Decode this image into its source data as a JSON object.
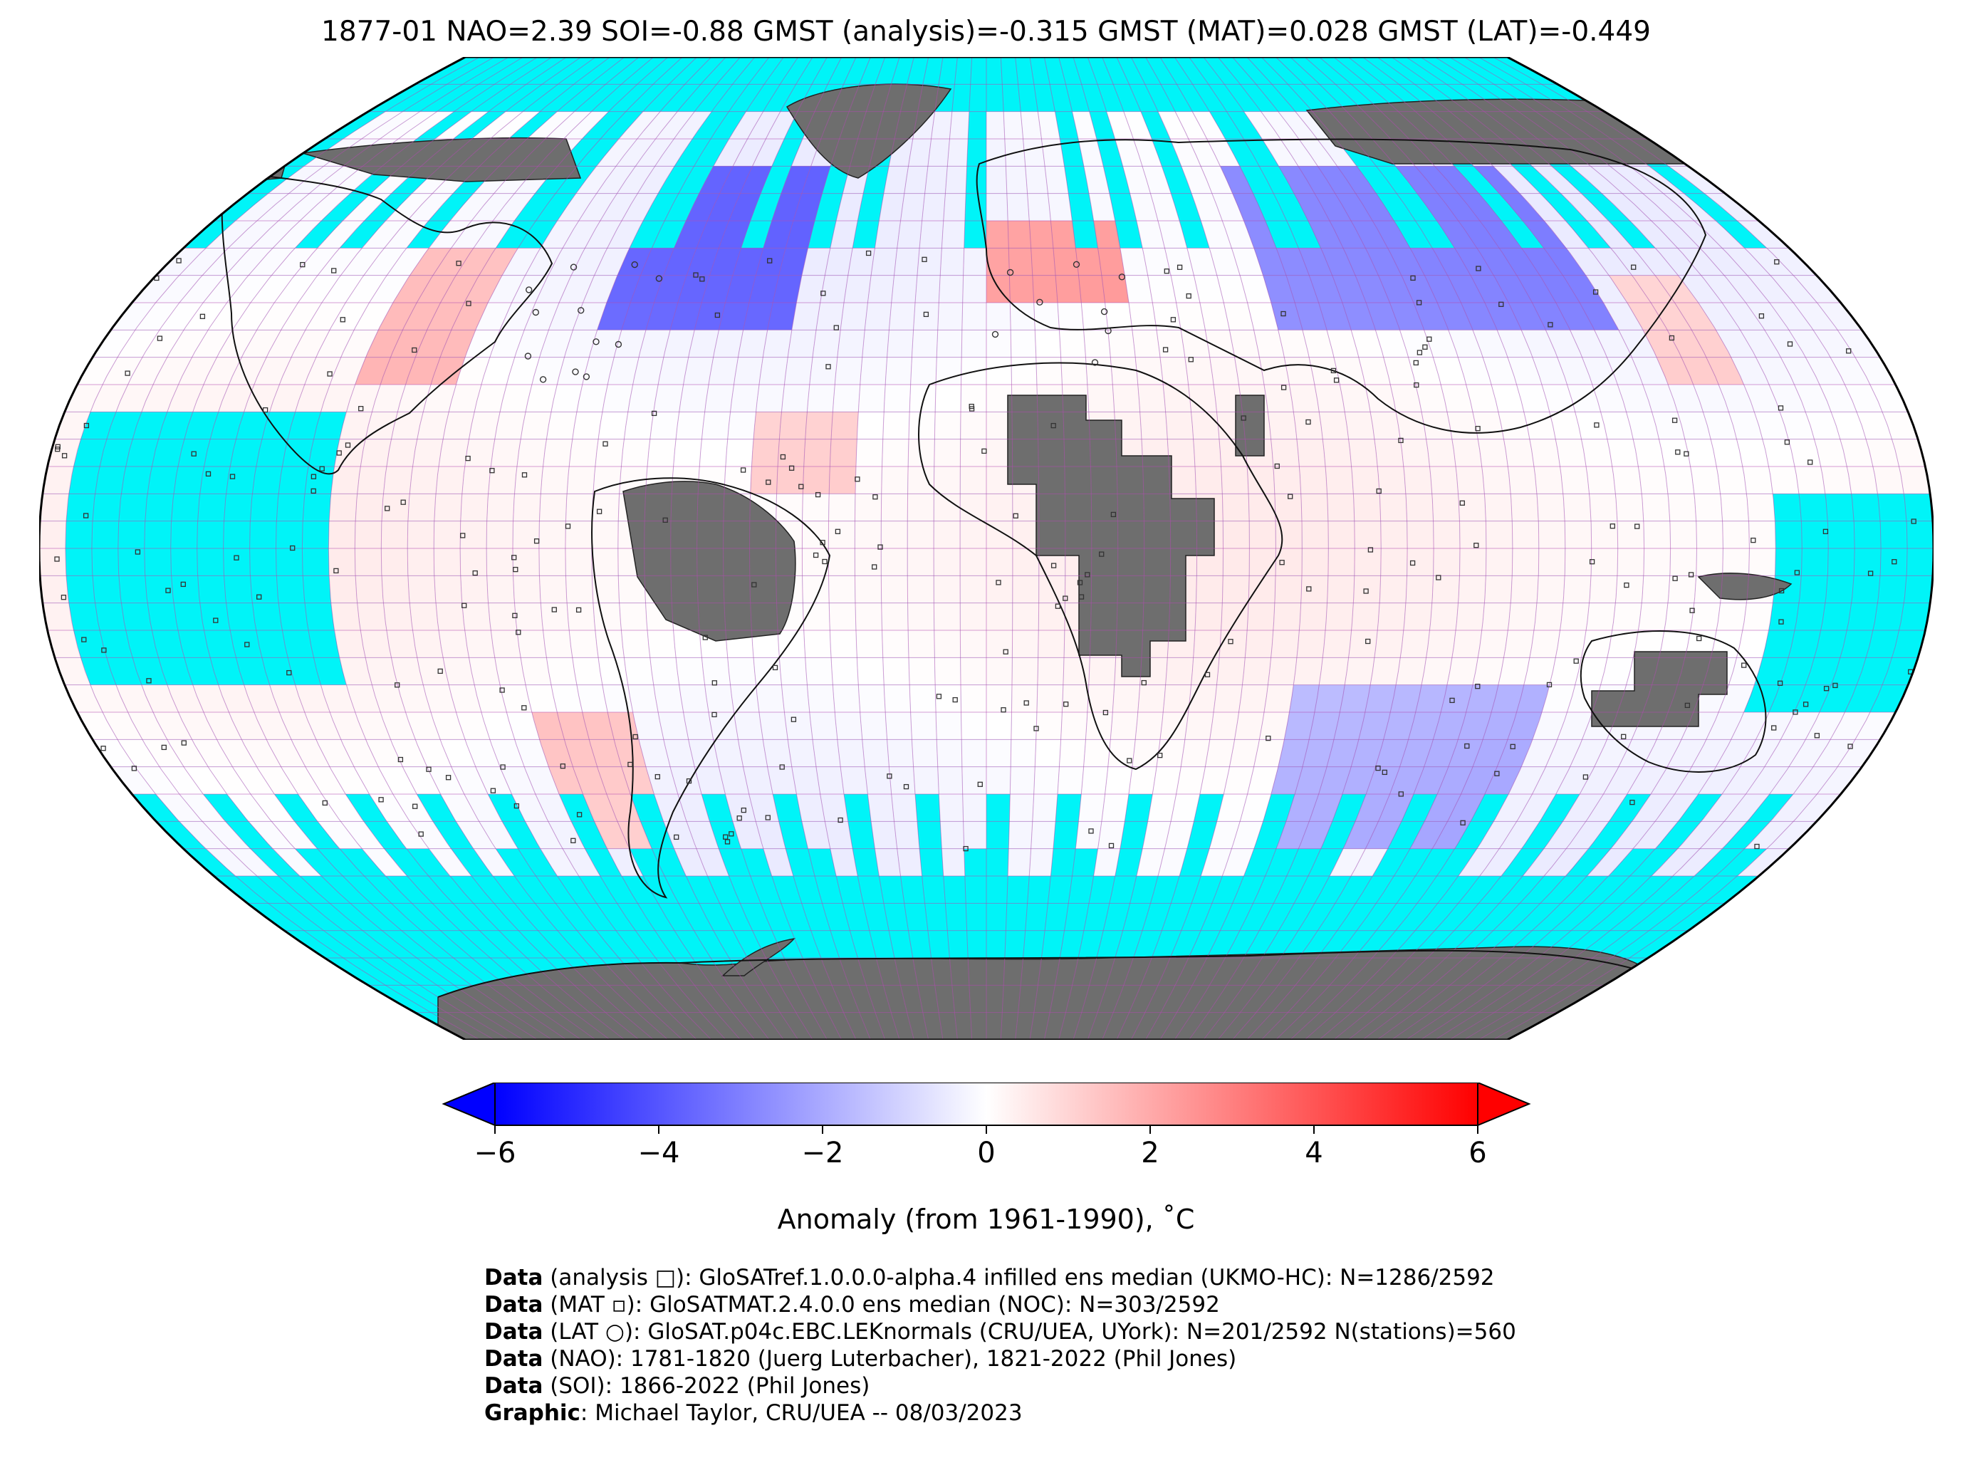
{
  "title": "1877-01 NAO=2.39 SOI=-0.88 GMST (analysis)=-0.315 GMST (MAT)=0.028 GMST (LAT)=-0.449",
  "colors": {
    "ocean_missing": "#00f4f8",
    "land_missing": "#6e6e6e",
    "grid": "#b04cb0",
    "cold": "#0000ff",
    "neutral": "#ffffff",
    "warm": "#ff0000"
  },
  "colorbar": {
    "label": "Anomaly (from 1961-1990), ˚C",
    "ticks": [
      "−6",
      "−4",
      "−2",
      "0",
      "2",
      "4",
      "6"
    ],
    "range": [
      -6,
      6
    ]
  },
  "credits": [
    {
      "head": "Data",
      "text": " (analysis □): GloSATref.1.0.0.0-alpha.4 infilled ens median (UKMO-HC): N=1286/2592"
    },
    {
      "head": "Data",
      "text": " (MAT ▫): GloSATMAT.2.4.0.0 ens median (NOC): N=303/2592"
    },
    {
      "head": "Data",
      "text": " (LAT ○): GloSAT.p04c.EBC.LEKnormals (CRU/UEA, UYork): N=201/2592 N(stations)=560"
    },
    {
      "head": "Data",
      "text": " (NAO): 1781-1820 (Juerg Luterbacher), 1821-2022 (Phil Jones)"
    },
    {
      "head": "Data",
      "text": " (SOI): 1866-2022 (Phil Jones)"
    },
    {
      "head": "Graphic",
      "text": ": Michael Taylor, CRU/UEA -- 08/03/2023"
    }
  ]
}
